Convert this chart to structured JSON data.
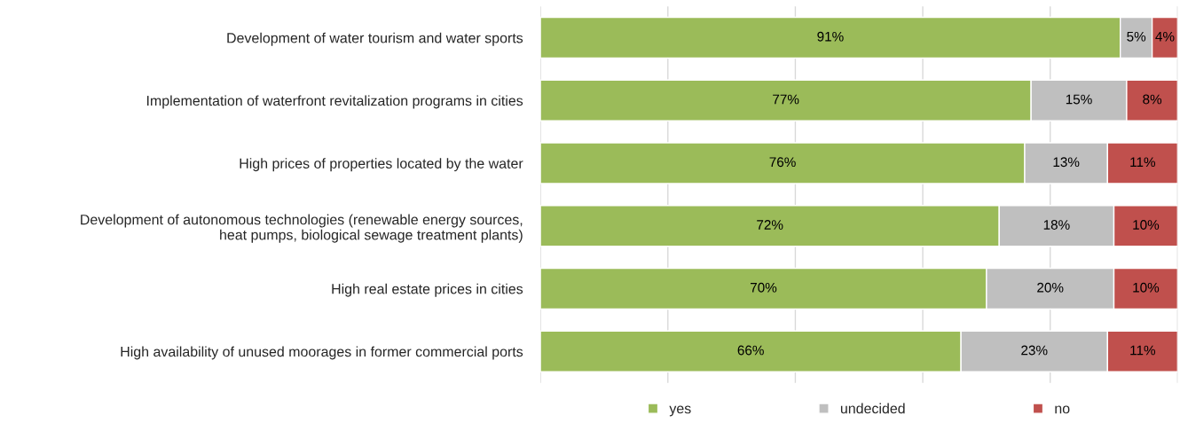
{
  "chart_data": {
    "type": "bar",
    "orientation": "horizontal",
    "stacked": true,
    "categories": [
      "Development of water tourism and water sports",
      "Implementation of waterfront revitalization programs in cities",
      "High prices of properties located by the water",
      "Development of autonomous technologies (renewable energy sources,\nheat pumps, biological sewage treatment plants)",
      "High real estate prices in cities",
      "High availability of unused moorages in former commercial ports"
    ],
    "series": [
      {
        "name": "yes",
        "color": "#9bbb59",
        "values": [
          91,
          77,
          76,
          72,
          70,
          66
        ],
        "value_labels": [
          "91%",
          "77%",
          "76%",
          "72%",
          "70%",
          "66%"
        ]
      },
      {
        "name": "undecided",
        "color": "#bfbfbf",
        "values": [
          5,
          15,
          13,
          18,
          20,
          23
        ],
        "value_labels": [
          "5%",
          "15%",
          "13%",
          "18%",
          "20%",
          "23%"
        ]
      },
      {
        "name": "no",
        "color": "#c0504d",
        "values": [
          4,
          8,
          11,
          10,
          10,
          11
        ],
        "value_labels": [
          "4%",
          "8%",
          "11%",
          "10%",
          "10%",
          "11%"
        ]
      }
    ],
    "xlim": [
      0,
      100
    ],
    "xticks": [
      {
        "value": 0,
        "label": null
      },
      {
        "value": 20,
        "label": null
      },
      {
        "value": 40,
        "label": null
      },
      {
        "value": 60,
        "label": null
      },
      {
        "value": 80,
        "label": null
      },
      {
        "value": 100,
        "label": null
      }
    ],
    "grid": "x",
    "legend": "bottom",
    "tick_labels": "y"
  }
}
